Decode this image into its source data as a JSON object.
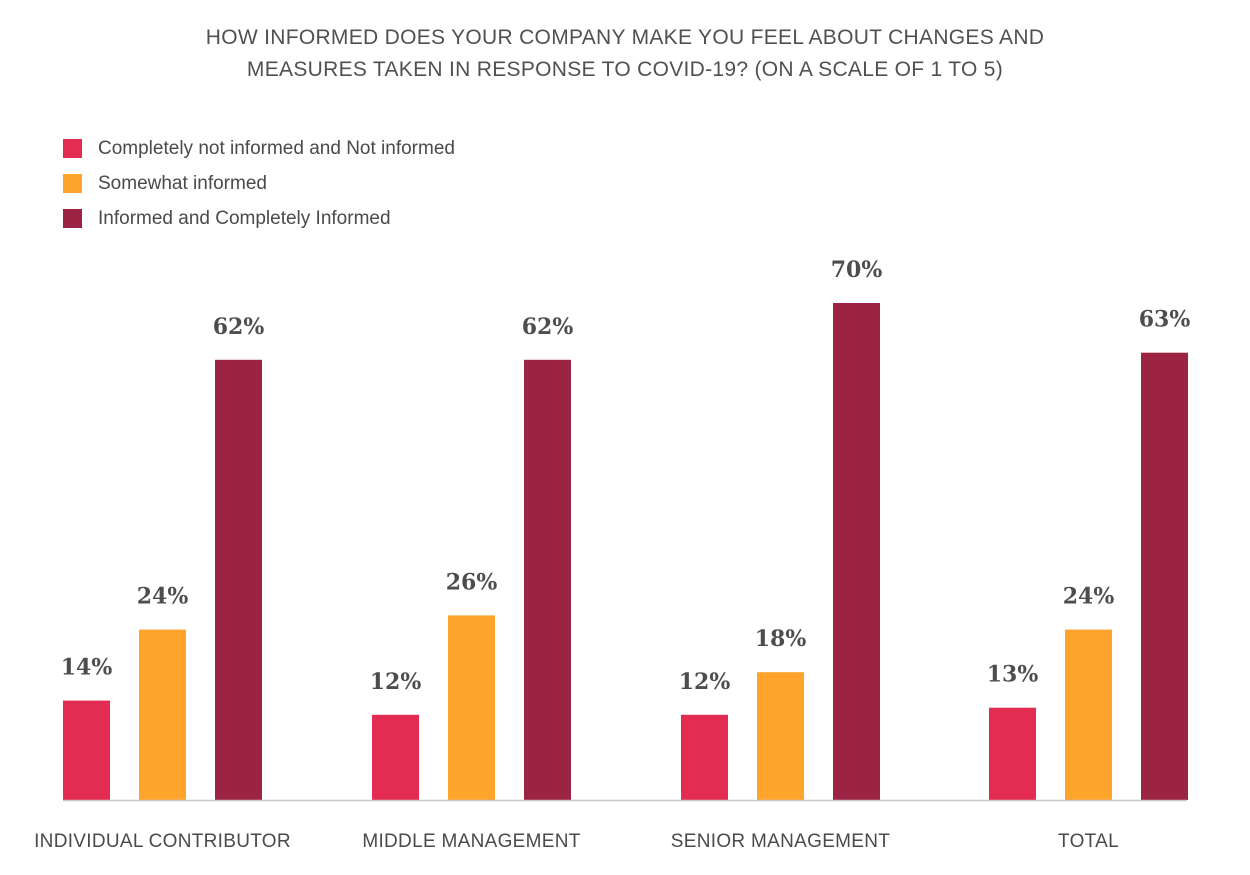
{
  "title_lines": [
    "HOW INFORMED DOES YOUR COMPANY MAKE YOU FEEL ABOUT CHANGES AND",
    "MEASURES TAKEN IN RESPONSE TO COVID-19? (ON A SCALE OF 1 TO 5)"
  ],
  "legend": [
    {
      "label": "Completely not informed and Not informed",
      "color": "#e32c52"
    },
    {
      "label": "Somewhat informed",
      "color": "#fea32c"
    },
    {
      "label": "Informed and Completely Informed",
      "color": "#9b2442"
    }
  ],
  "chart_data": {
    "type": "bar",
    "title": "HOW INFORMED DOES YOUR COMPANY MAKE YOU FEEL ABOUT CHANGES AND MEASURES TAKEN IN RESPONSE TO COVID-19? (ON A SCALE OF 1 TO 5)",
    "categories": [
      "INDIVIDUAL CONTRIBUTOR",
      "MIDDLE MANAGEMENT",
      "SENIOR MANAGEMENT",
      "TOTAL"
    ],
    "series": [
      {
        "name": "Completely not informed and Not informed",
        "values": [
          14,
          12,
          12,
          13
        ],
        "labels": [
          "14%",
          "12%",
          "12%",
          "13%"
        ],
        "color": "#e32c52"
      },
      {
        "name": "Somewhat informed",
        "values": [
          24,
          26,
          18,
          24
        ],
        "labels": [
          "24%",
          "26%",
          "18%",
          "24%"
        ],
        "color": "#fea32c"
      },
      {
        "name": "Informed and Completely Informed",
        "values": [
          62,
          62,
          70,
          63
        ],
        "labels": [
          "62%",
          "62%",
          "70%",
          "63%"
        ],
        "color": "#9b2442"
      }
    ],
    "ylim": [
      0,
      100
    ],
    "grid": false,
    "legend_position": "top-left",
    "axis_color": "#c8c8c8"
  }
}
